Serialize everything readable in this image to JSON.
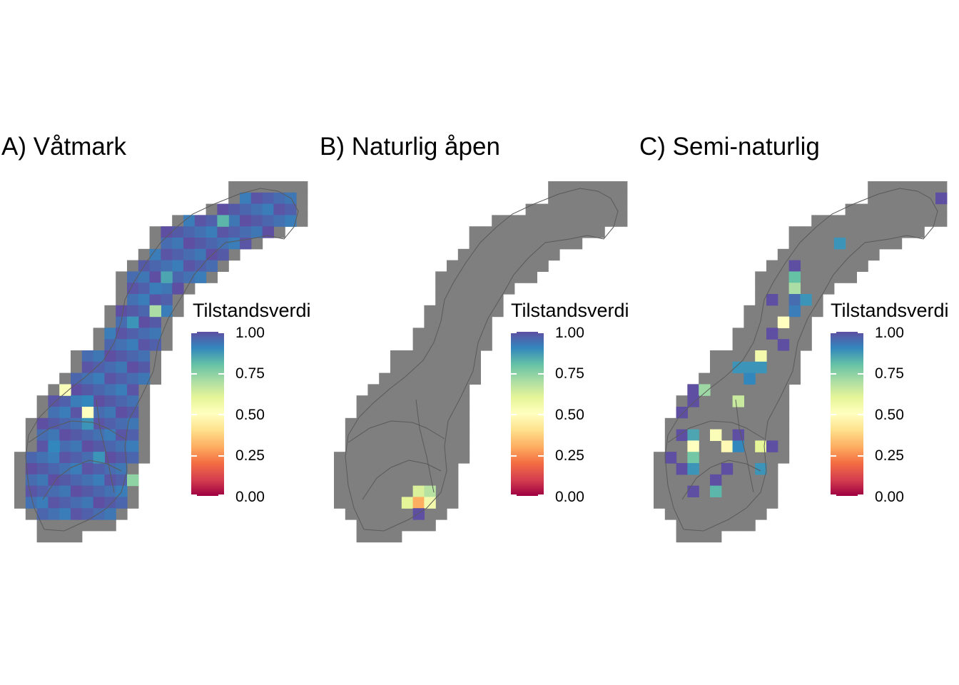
{
  "panels": [
    {
      "title": "A) Våtmark",
      "legend": {
        "title": "Tilstandsverdi",
        "labels": [
          "1.00",
          "0.75",
          "0.50",
          "0.25",
          "0.00"
        ]
      },
      "highlights": [
        {
          "col": 18,
          "row": 3,
          "value": 0.82
        },
        {
          "col": 13,
          "row": 8,
          "value": 0.85
        },
        {
          "col": 12,
          "row": 9,
          "value": 0.92
        },
        {
          "col": 12,
          "row": 11,
          "value": 0.7
        },
        {
          "col": 10,
          "row": 12,
          "value": 0.88
        },
        {
          "col": 4,
          "row": 18,
          "value": 0.52
        },
        {
          "col": 5,
          "row": 19,
          "value": 0.92
        },
        {
          "col": 6,
          "row": 19,
          "value": 0.9
        },
        {
          "col": 6,
          "row": 20,
          "value": 0.5
        },
        {
          "col": 6,
          "row": 21,
          "value": 0.88
        },
        {
          "col": 3,
          "row": 23,
          "value": 0.9
        },
        {
          "col": 7,
          "row": 24,
          "value": 0.88
        },
        {
          "col": 10,
          "row": 26,
          "value": 0.74
        }
      ]
    },
    {
      "title": "B) Naturlig åpen",
      "legend": {
        "title": "Tilstandsverdi",
        "labels": [
          "1.00",
          "0.75",
          "0.50",
          "0.25",
          "0.00"
        ]
      },
      "highlights": [
        {
          "col": 7,
          "row": 27,
          "value": 0.62
        },
        {
          "col": 8,
          "row": 27,
          "value": 0.68
        },
        {
          "col": 6,
          "row": 28,
          "value": 0.6
        },
        {
          "col": 7,
          "row": 28,
          "value": 0.3
        },
        {
          "col": 8,
          "row": 28,
          "value": 0.55
        },
        {
          "col": 7,
          "row": 29,
          "value": 1.0
        }
      ]
    },
    {
      "title": "C) Semi-naturlig",
      "legend": {
        "title": "Tilstandsverdi",
        "labels": [
          "1.00",
          "0.75",
          "0.50",
          "0.25",
          "0.00"
        ]
      },
      "highlights": [
        {
          "col": 25,
          "row": 1,
          "value": 1.0
        },
        {
          "col": 16,
          "row": 5,
          "value": 0.88
        },
        {
          "col": 12,
          "row": 7,
          "value": 1.0
        },
        {
          "col": 12,
          "row": 8,
          "value": 0.8
        },
        {
          "col": 12,
          "row": 9,
          "value": 0.7
        },
        {
          "col": 10,
          "row": 10,
          "value": 1.0
        },
        {
          "col": 12,
          "row": 10,
          "value": 0.95
        },
        {
          "col": 13,
          "row": 10,
          "value": 0.88
        },
        {
          "col": 12,
          "row": 11,
          "value": 0.92
        },
        {
          "col": 11,
          "row": 12,
          "value": 0.5
        },
        {
          "col": 10,
          "row": 13,
          "value": 1.0
        },
        {
          "col": 11,
          "row": 14,
          "value": 1.0
        },
        {
          "col": 9,
          "row": 15,
          "value": 0.55
        },
        {
          "col": 7,
          "row": 16,
          "value": 0.88
        },
        {
          "col": 8,
          "row": 16,
          "value": 0.88
        },
        {
          "col": 9,
          "row": 16,
          "value": 0.88
        },
        {
          "col": 8,
          "row": 17,
          "value": 0.9
        },
        {
          "col": 3,
          "row": 18,
          "value": 1.0
        },
        {
          "col": 4,
          "row": 18,
          "value": 0.72
        },
        {
          "col": 3,
          "row": 19,
          "value": 1.0
        },
        {
          "col": 7,
          "row": 19,
          "value": 0.65
        },
        {
          "col": 2,
          "row": 20,
          "value": 1.0
        },
        {
          "col": 2,
          "row": 22,
          "value": 1.0
        },
        {
          "col": 3,
          "row": 22,
          "value": 0.85
        },
        {
          "col": 5,
          "row": 22,
          "value": 0.52
        },
        {
          "col": 3,
          "row": 23,
          "value": 0.5
        },
        {
          "col": 6,
          "row": 23,
          "value": 0.48
        },
        {
          "col": 7,
          "row": 22,
          "value": 1.0
        },
        {
          "col": 7,
          "row": 23,
          "value": 0.9
        },
        {
          "col": 9,
          "row": 23,
          "value": 0.6
        },
        {
          "col": 10,
          "row": 23,
          "value": 1.0
        },
        {
          "col": 1,
          "row": 24,
          "value": 1.0
        },
        {
          "col": 3,
          "row": 24,
          "value": 0.78
        },
        {
          "col": 2,
          "row": 25,
          "value": 1.0
        },
        {
          "col": 3,
          "row": 25,
          "value": 0.88
        },
        {
          "col": 9,
          "row": 25,
          "value": 0.88
        },
        {
          "col": 6,
          "row": 25,
          "value": 1.0
        },
        {
          "col": 5,
          "row": 26,
          "value": 1.0
        },
        {
          "col": 3,
          "row": 27,
          "value": 1.0
        },
        {
          "col": 5,
          "row": 27,
          "value": 0.82
        }
      ]
    }
  ],
  "colors": {
    "background_cell": "#7f7f7f",
    "border_line": "#5a5a5a",
    "base_fill_A": "#5e4fa2",
    "palette": [
      "#9e0142",
      "#d53e4f",
      "#f46d43",
      "#fdae61",
      "#fee08b",
      "#ffffbf",
      "#e6f598",
      "#abdda4",
      "#66c2a5",
      "#3288bd",
      "#5e4fa2"
    ]
  }
}
